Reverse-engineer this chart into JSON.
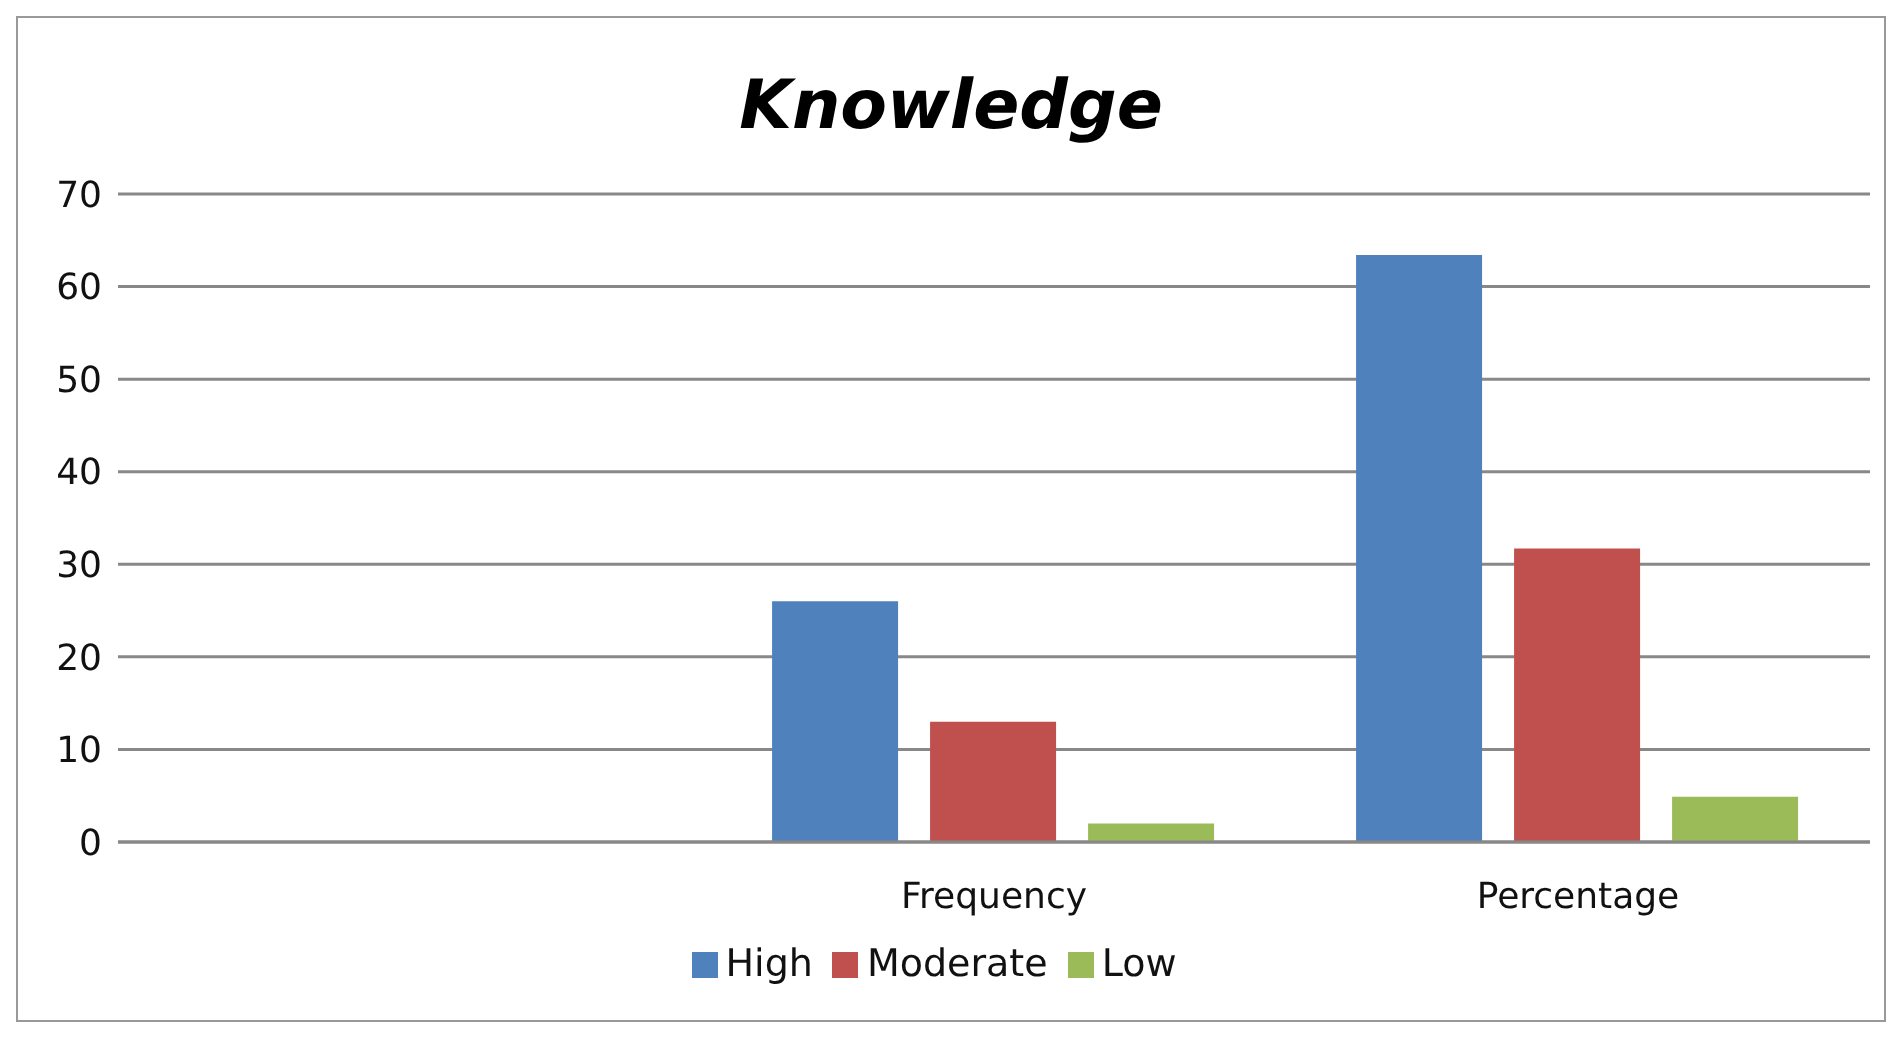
{
  "chart_data": {
    "type": "bar",
    "title": "Knowledge",
    "categories": [
      null,
      "Frequency",
      "Percentage"
    ],
    "series": [
      {
        "name": "High",
        "color": "#4f81bd",
        "values": [
          null,
          26,
          63.4
        ]
      },
      {
        "name": "Moderate",
        "color": "#c0504d",
        "values": [
          null,
          13,
          31.7
        ]
      },
      {
        "name": "Low",
        "color": "#9bbb59",
        "values": [
          null,
          2,
          4.9
        ]
      }
    ],
    "ylim": [
      0,
      70
    ],
    "yticks": [
      0,
      10,
      20,
      30,
      40,
      50,
      60,
      70
    ],
    "grid": "y",
    "legend": "bottom"
  }
}
